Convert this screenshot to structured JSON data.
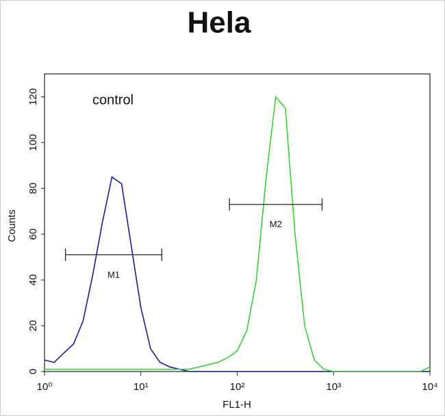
{
  "chart_data": {
    "type": "line",
    "title": "Hela",
    "x_label": "FL1-H",
    "y_label": "Counts",
    "annotation": "control",
    "log_x": true,
    "x": [
      1,
      1.26,
      1.58,
      2,
      2.51,
      3.16,
      3.98,
      5.01,
      6.31,
      7.94,
      10,
      12.6,
      15.8,
      20,
      25.1,
      31.6,
      39.8,
      50.1,
      63.1,
      79.4,
      100,
      126,
      158,
      200,
      251,
      316,
      398,
      501,
      631,
      794,
      1000,
      1260,
      1580,
      2000,
      2510,
      3160,
      3980,
      5010,
      6310,
      7940,
      10000
    ],
    "series": [
      {
        "color": "#1c1c8c",
        "values": [
          5,
          4,
          8,
          12,
          22,
          42,
          65,
          85,
          82,
          55,
          28,
          10,
          4,
          2,
          1,
          0,
          0,
          0,
          0,
          0,
          0,
          0,
          0,
          0,
          0,
          0,
          0,
          0,
          0,
          0,
          0,
          0,
          0,
          0,
          0,
          0,
          0,
          0,
          0,
          0,
          0
        ]
      },
      {
        "color": "#3ccc3c",
        "values": [
          1,
          1,
          1,
          1,
          1,
          1,
          1,
          1,
          1,
          1,
          1,
          1,
          1,
          1,
          1,
          1,
          2,
          3,
          4,
          6,
          9,
          18,
          40,
          85,
          120,
          115,
          60,
          20,
          5,
          1,
          0,
          0,
          0,
          0,
          0,
          0,
          0,
          0,
          0,
          0,
          2
        ]
      }
    ],
    "markers": [
      {
        "label": "M1",
        "x": [
          1.65,
          16.5
        ],
        "y": 51
      },
      {
        "label": "M2",
        "x": [
          83,
          760
        ],
        "y": 73
      }
    ],
    "xlim": [
      1,
      10000
    ],
    "xticks": [
      {
        "value": 1,
        "label": "10⁰"
      },
      {
        "value": 10,
        "label": "10¹"
      },
      {
        "value": 100,
        "label": "10²"
      },
      {
        "value": 1000,
        "label": "10³"
      },
      {
        "value": 10000,
        "label": "10⁴"
      }
    ],
    "ylim": [
      0,
      130
    ],
    "yticks": [
      0,
      20,
      40,
      60,
      80,
      100,
      120
    ]
  }
}
